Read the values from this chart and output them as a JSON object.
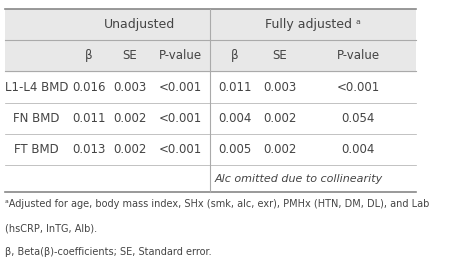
{
  "header1": "Unadjusted",
  "header2": "Fully adjusted ᵃ",
  "subheaders": [
    "β",
    "SE",
    "P-value",
    "β",
    "SE",
    "P-value"
  ],
  "row_labels": [
    "L1-L4 BMD",
    "FN BMD",
    "FT BMD"
  ],
  "rows": [
    [
      "0.016",
      "0.003",
      "<0.001",
      "0.011",
      "0.003",
      "<0.001"
    ],
    [
      "0.011",
      "0.002",
      "<0.001",
      "0.004",
      "0.002",
      "0.054"
    ],
    [
      "0.013",
      "0.002",
      "<0.001",
      "0.005",
      "0.002",
      "0.004"
    ]
  ],
  "note_row": "Alc omitted due to collinearity",
  "footnote1": "ᵃAdjusted for age, body mass index, SHx (smk, alc, exr), PMHx (HTN, DM, DL), and Lab",
  "footnote2": "(hsCRP, lnTG, Alb).",
  "footnote3": "β, Beta(β)-coefficients; SE, Standard error.",
  "header_bg": "#e8e8e8",
  "line_color": "#aaaaaa",
  "text_color": "#444444",
  "font_size": 8.5
}
